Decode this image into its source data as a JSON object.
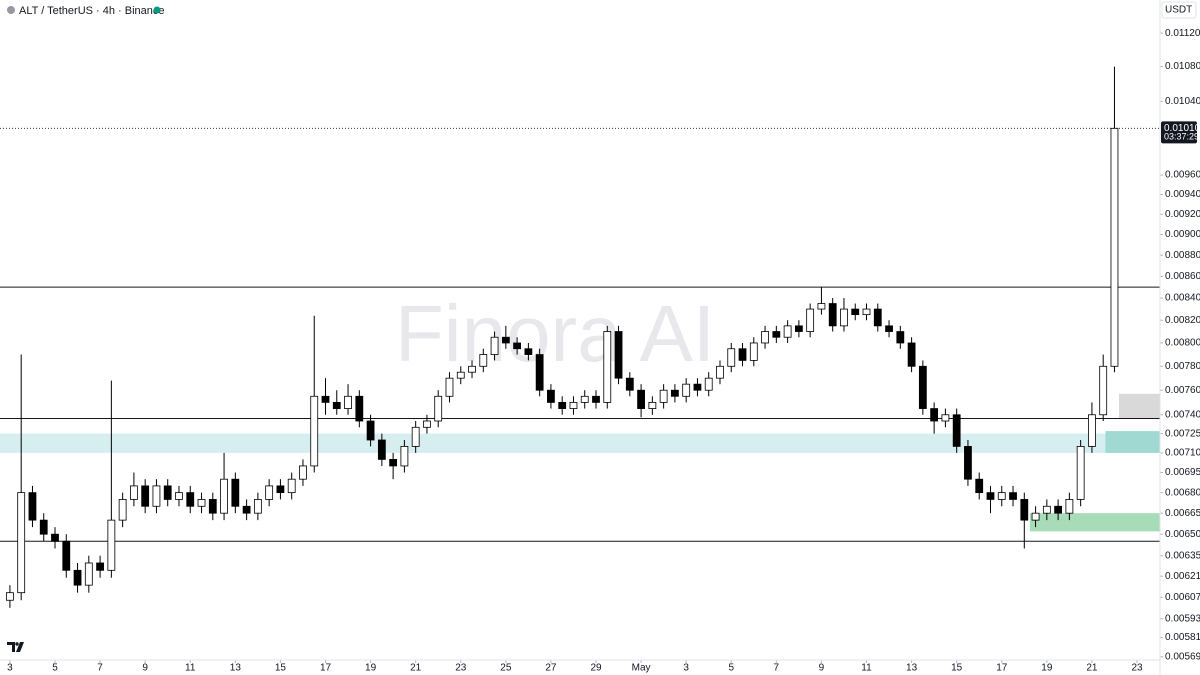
{
  "header": {
    "title": "ALT / TetherUS · 4h · Binance",
    "currency": "USDT"
  },
  "watermark": "Finora AI",
  "chart_data": {
    "type": "candlestick",
    "log_scale": true,
    "up_color": "#ffffff",
    "down_color": "#000000",
    "outline_color": "#000000",
    "x": [
      0,
      0.5,
      1,
      1.5,
      2,
      2.5,
      3,
      3.5,
      4,
      4.5,
      5,
      5.5,
      6,
      6.5,
      7,
      7.5,
      8,
      8.5,
      9,
      9.5,
      10,
      10.5,
      11,
      11.5,
      12,
      12.5,
      13,
      13.5,
      14,
      14.5,
      15,
      15.5,
      16,
      16.5,
      17,
      17.5,
      18,
      18.5,
      19,
      19.5,
      20,
      20.5,
      21,
      21.5,
      22,
      22.5,
      23,
      23.5,
      24,
      24.5,
      25,
      25.5,
      26,
      26.5,
      27,
      27.5,
      28,
      28.5,
      29,
      29.5,
      30,
      30.5,
      31,
      31.5,
      32,
      32.5,
      33,
      33.5,
      34,
      34.5,
      35,
      35.5,
      36,
      36.5,
      37,
      37.5,
      38,
      38.5,
      39,
      39.5,
      40,
      40.5,
      41,
      41.5,
      42,
      42.5,
      43,
      43.5,
      44,
      44.5,
      45,
      45.5,
      46,
      46.5,
      47,
      47.5,
      48,
      48.5,
      49
    ],
    "open": [
      0.00605,
      0.0061,
      0.0068,
      0.0066,
      0.0065,
      0.00645,
      0.00625,
      0.00615,
      0.0063,
      0.00625,
      0.0066,
      0.00675,
      0.00685,
      0.0067,
      0.00685,
      0.00675,
      0.0068,
      0.0067,
      0.00675,
      0.00665,
      0.0069,
      0.0067,
      0.00665,
      0.00675,
      0.00685,
      0.0068,
      0.0069,
      0.007,
      0.00755,
      0.0075,
      0.00745,
      0.00755,
      0.00735,
      0.0072,
      0.00705,
      0.007,
      0.00715,
      0.0073,
      0.00735,
      0.00755,
      0.0077,
      0.00775,
      0.0078,
      0.0079,
      0.00805,
      0.008,
      0.00795,
      0.0079,
      0.0076,
      0.0075,
      0.00745,
      0.0075,
      0.00755,
      0.0075,
      0.0081,
      0.0077,
      0.0076,
      0.00745,
      0.0075,
      0.0076,
      0.00755,
      0.00765,
      0.0076,
      0.0077,
      0.0078,
      0.00795,
      0.00785,
      0.008,
      0.0081,
      0.00805,
      0.00815,
      0.0081,
      0.0083,
      0.00835,
      0.00815,
      0.0083,
      0.00825,
      0.0083,
      0.00815,
      0.0081,
      0.008,
      0.0078,
      0.00745,
      0.00735,
      0.0074,
      0.00715,
      0.0069,
      0.0068,
      0.00675,
      0.0068,
      0.00675,
      0.0066,
      0.00665,
      0.0067,
      0.00665,
      0.00675,
      0.00715,
      0.0074,
      0.0078
    ],
    "high": [
      0.00615,
      0.0079,
      0.00685,
      0.00665,
      0.00655,
      0.0065,
      0.0063,
      0.00635,
      0.00635,
      0.00768,
      0.0068,
      0.00695,
      0.0069,
      0.0069,
      0.0069,
      0.00685,
      0.00685,
      0.0068,
      0.0068,
      0.0071,
      0.00695,
      0.00675,
      0.0068,
      0.0069,
      0.0069,
      0.00695,
      0.00705,
      0.00824,
      0.0077,
      0.0076,
      0.00765,
      0.0076,
      0.0074,
      0.00725,
      0.0071,
      0.0072,
      0.00735,
      0.0074,
      0.0076,
      0.00775,
      0.0078,
      0.00785,
      0.00795,
      0.0081,
      0.00815,
      0.00805,
      0.008,
      0.00795,
      0.00765,
      0.00755,
      0.00755,
      0.0076,
      0.0076,
      0.00815,
      0.00815,
      0.00775,
      0.00765,
      0.00755,
      0.00765,
      0.00765,
      0.0077,
      0.0077,
      0.00775,
      0.00785,
      0.008,
      0.008,
      0.00805,
      0.00815,
      0.00815,
      0.0082,
      0.0082,
      0.00835,
      0.0085,
      0.0084,
      0.0084,
      0.00835,
      0.00835,
      0.00835,
      0.0082,
      0.00815,
      0.00805,
      0.00785,
      0.0075,
      0.00745,
      0.00745,
      0.0072,
      0.00695,
      0.00685,
      0.00685,
      0.00685,
      0.0068,
      0.0067,
      0.00675,
      0.00675,
      0.0068,
      0.0072,
      0.0075,
      0.0079,
      0.0108
    ],
    "low": [
      0.006,
      0.00605,
      0.00655,
      0.00645,
      0.0064,
      0.0062,
      0.0061,
      0.0061,
      0.0062,
      0.0062,
      0.00655,
      0.0067,
      0.00665,
      0.00665,
      0.0067,
      0.0067,
      0.00665,
      0.00665,
      0.0066,
      0.0066,
      0.00665,
      0.0066,
      0.0066,
      0.0067,
      0.00675,
      0.00675,
      0.00685,
      0.00695,
      0.0074,
      0.0074,
      0.0074,
      0.0073,
      0.00715,
      0.007,
      0.0069,
      0.00695,
      0.0071,
      0.00725,
      0.0073,
      0.0075,
      0.00765,
      0.0077,
      0.00775,
      0.00785,
      0.00795,
      0.0079,
      0.00785,
      0.00755,
      0.00745,
      0.0074,
      0.0074,
      0.00745,
      0.00745,
      0.00745,
      0.00765,
      0.00755,
      0.00738,
      0.0074,
      0.00745,
      0.0075,
      0.0075,
      0.00755,
      0.00755,
      0.00765,
      0.00775,
      0.0078,
      0.0078,
      0.00795,
      0.008,
      0.008,
      0.00805,
      0.00805,
      0.00825,
      0.0081,
      0.0081,
      0.0082,
      0.0082,
      0.0081,
      0.00805,
      0.00795,
      0.00775,
      0.0074,
      0.00725,
      0.0073,
      0.0071,
      0.00685,
      0.00675,
      0.00665,
      0.0067,
      0.0067,
      0.0064,
      0.00655,
      0.0066,
      0.0066,
      0.0066,
      0.0067,
      0.0071,
      0.00735,
      0.00775
    ],
    "close": [
      0.0061,
      0.0068,
      0.0066,
      0.0065,
      0.00645,
      0.00625,
      0.00615,
      0.0063,
      0.00625,
      0.0066,
      0.00675,
      0.00685,
      0.0067,
      0.00685,
      0.00675,
      0.0068,
      0.0067,
      0.00675,
      0.00665,
      0.0069,
      0.0067,
      0.00665,
      0.00675,
      0.00685,
      0.0068,
      0.0069,
      0.007,
      0.00755,
      0.0075,
      0.00745,
      0.00755,
      0.00735,
      0.0072,
      0.00705,
      0.007,
      0.00715,
      0.0073,
      0.00735,
      0.00755,
      0.0077,
      0.00775,
      0.0078,
      0.0079,
      0.00805,
      0.008,
      0.00795,
      0.0079,
      0.0076,
      0.0075,
      0.00745,
      0.0075,
      0.00755,
      0.0075,
      0.0081,
      0.0077,
      0.0076,
      0.00745,
      0.0075,
      0.0076,
      0.00755,
      0.00765,
      0.0076,
      0.0077,
      0.0078,
      0.00795,
      0.00785,
      0.008,
      0.0081,
      0.00805,
      0.00815,
      0.0081,
      0.0083,
      0.00835,
      0.00815,
      0.0083,
      0.00825,
      0.0083,
      0.00815,
      0.0081,
      0.008,
      0.0078,
      0.00745,
      0.00735,
      0.0074,
      0.00715,
      0.0069,
      0.0068,
      0.00675,
      0.0068,
      0.00675,
      0.0066,
      0.00665,
      0.0067,
      0.00665,
      0.00675,
      0.00715,
      0.0074,
      0.0078,
      0.0101
    ],
    "xlim": [
      -0.44,
      51.02
    ],
    "xticks": [
      {
        "value": 0,
        "label": "3"
      },
      {
        "value": 2,
        "label": "5"
      },
      {
        "value": 4,
        "label": "7"
      },
      {
        "value": 6,
        "label": "9"
      },
      {
        "value": 8,
        "label": "11"
      },
      {
        "value": 10,
        "label": "13"
      },
      {
        "value": 12,
        "label": "15"
      },
      {
        "value": 14,
        "label": "17"
      },
      {
        "value": 16,
        "label": "19"
      },
      {
        "value": 18,
        "label": "21"
      },
      {
        "value": 20,
        "label": "23"
      },
      {
        "value": 22,
        "label": "25"
      },
      {
        "value": 24,
        "label": "27"
      },
      {
        "value": 26,
        "label": "29"
      },
      {
        "value": 28,
        "label": "May"
      },
      {
        "value": 30,
        "label": "3"
      },
      {
        "value": 32,
        "label": "5"
      },
      {
        "value": 34,
        "label": "7"
      },
      {
        "value": 36,
        "label": "9"
      },
      {
        "value": 38,
        "label": "11"
      },
      {
        "value": 40,
        "label": "13"
      },
      {
        "value": 42,
        "label": "15"
      },
      {
        "value": 44,
        "label": "17"
      },
      {
        "value": 46,
        "label": "19"
      },
      {
        "value": 48,
        "label": "21"
      },
      {
        "value": 50,
        "label": "23"
      }
    ],
    "ylim": [
      0.00567,
      0.01161
    ],
    "yticks": [
      {
        "value": 0.0112,
        "label": "0.01120"
      },
      {
        "value": 0.0108,
        "label": "0.01080"
      },
      {
        "value": 0.0104,
        "label": "0.01040"
      },
      {
        "value": 0.0096,
        "label": "0.00960"
      },
      {
        "value": 0.0094,
        "label": "0.00940"
      },
      {
        "value": 0.0092,
        "label": "0.00920"
      },
      {
        "value": 0.009,
        "label": "0.00900"
      },
      {
        "value": 0.0088,
        "label": "0.00880"
      },
      {
        "value": 0.0086,
        "label": "0.00860"
      },
      {
        "value": 0.0084,
        "label": "0.00840"
      },
      {
        "value": 0.0082,
        "label": "0.00820"
      },
      {
        "value": 0.008,
        "label": "0.00800"
      },
      {
        "value": 0.0078,
        "label": "0.00780"
      },
      {
        "value": 0.0076,
        "label": "0.00760"
      },
      {
        "value": 0.0074,
        "label": "0.00740"
      },
      {
        "value": 0.00725,
        "label": "0.00725"
      },
      {
        "value": 0.0071,
        "label": "0.00710"
      },
      {
        "value": 0.00695,
        "label": "0.00695"
      },
      {
        "value": 0.0068,
        "label": "0.00680"
      },
      {
        "value": 0.00665,
        "label": "0.00665"
      },
      {
        "value": 0.0065,
        "label": "0.00650"
      },
      {
        "value": 0.00635,
        "label": "0.00635"
      },
      {
        "value": 0.00621,
        "label": "0.00621"
      },
      {
        "value": 0.00607,
        "label": "0.00607"
      },
      {
        "value": 0.00593,
        "label": "0.00593"
      },
      {
        "value": 0.00581,
        "label": "0.00581"
      },
      {
        "value": 0.00569,
        "label": "0.00569"
      }
    ],
    "levels": [
      0.0085,
      0.00737,
      0.00645
    ],
    "zones": [
      {
        "from": -0.44,
        "low": 0.0071,
        "high": 0.00725,
        "color": "#d6eef0"
      },
      {
        "from": 49.2,
        "low": 0.00737,
        "high": 0.00757,
        "color": "#d9d9d9"
      },
      {
        "from": 48.6,
        "low": 0.0071,
        "high": 0.00727,
        "color": "#9fd9d2"
      },
      {
        "from": 45.25,
        "low": 0.00652,
        "high": 0.00665,
        "color": "#a8dcb8"
      }
    ],
    "last_price": {
      "value": 0.0101,
      "label": "0.01010"
    },
    "countdown": "03:37:29"
  }
}
